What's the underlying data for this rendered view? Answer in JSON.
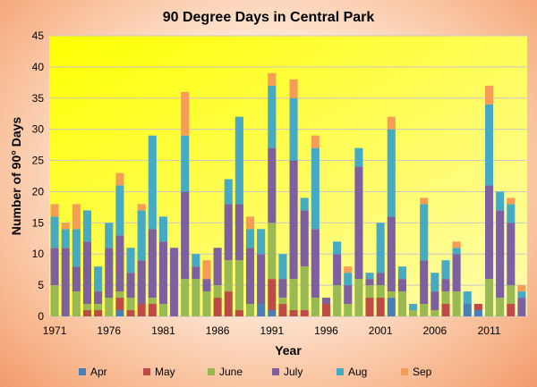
{
  "chart_data": {
    "type": "bar",
    "stacked": true,
    "title": "90 Degree Days in Central Park",
    "xlabel": "Year",
    "ylabel": "Number of 90° Days",
    "ylim": [
      0,
      45
    ],
    "yticks": [
      "0",
      "5",
      "10",
      "15",
      "20",
      "25",
      "30",
      "35",
      "40",
      "45"
    ],
    "xtick_labels": [
      {
        "year": 1971,
        "label": "1971"
      },
      {
        "year": 1976,
        "label": "1976"
      },
      {
        "year": 1981,
        "label": "1981"
      },
      {
        "year": 1986,
        "label": "1986"
      },
      {
        "year": 1991,
        "label": "1991"
      },
      {
        "year": 1996,
        "label": "1996"
      },
      {
        "year": 2001,
        "label": "2001"
      },
      {
        "year": 2006,
        "label": "2006"
      },
      {
        "year": 2011,
        "label": "2011"
      }
    ],
    "grid": true,
    "legend_position": "bottom",
    "colors": {
      "Apr": "#4a7ebb",
      "May": "#be4b48",
      "June": "#98b954",
      "July": "#7d60a0",
      "Aug": "#46aac5",
      "Sep": "#f59d56"
    },
    "plot_background": [
      "#ffff00",
      "#fffbb0"
    ],
    "categories": [
      1971,
      1972,
      1973,
      1974,
      1975,
      1976,
      1977,
      1978,
      1979,
      1980,
      1981,
      1982,
      1983,
      1984,
      1985,
      1986,
      1987,
      1988,
      1989,
      1990,
      1991,
      1992,
      1993,
      1994,
      1995,
      1996,
      1997,
      1998,
      1999,
      2000,
      2001,
      2002,
      2003,
      2004,
      2005,
      2006,
      2007,
      2008,
      2009,
      2010,
      2011,
      2012,
      2013,
      2014
    ],
    "series": [
      {
        "name": "Apr",
        "values": [
          0,
          0,
          0,
          0,
          0,
          0,
          1,
          0,
          0,
          0,
          0,
          0,
          0,
          0,
          0,
          0,
          0,
          0,
          0,
          2,
          1,
          0,
          0,
          0,
          0,
          0,
          0,
          0,
          0,
          0,
          0,
          3,
          0,
          0,
          0,
          0,
          0,
          0,
          2,
          1,
          0,
          0,
          0,
          0
        ]
      },
      {
        "name": "May",
        "values": [
          0,
          0,
          0,
          1,
          1,
          0,
          2,
          1,
          2,
          2,
          0,
          0,
          0,
          0,
          0,
          3,
          4,
          1,
          0,
          0,
          5,
          2,
          1,
          1,
          0,
          2,
          0,
          0,
          0,
          3,
          3,
          0,
          0,
          0,
          0,
          0,
          2,
          0,
          0,
          1,
          0,
          0,
          2,
          0
        ]
      },
      {
        "name": "June",
        "values": [
          5,
          0,
          4,
          1,
          1,
          3,
          1,
          2,
          0,
          1,
          2,
          0,
          6,
          6,
          4,
          2,
          5,
          8,
          2,
          0,
          9,
          1,
          5,
          7,
          3,
          0,
          5,
          2,
          6,
          2,
          2,
          1,
          4,
          1,
          2,
          1,
          2,
          4,
          0,
          0,
          6,
          3,
          3,
          0
        ]
      },
      {
        "name": "July",
        "values": [
          6,
          11,
          4,
          10,
          2,
          8,
          9,
          4,
          7,
          11,
          10,
          11,
          14,
          2,
          2,
          6,
          9,
          9,
          9,
          8,
          12,
          3,
          19,
          9,
          11,
          1,
          5,
          3,
          18,
          1,
          2,
          12,
          2,
          0,
          7,
          3,
          2,
          6,
          0,
          0,
          15,
          14,
          10,
          3
        ]
      },
      {
        "name": "Aug",
        "values": [
          5,
          3,
          6,
          5,
          4,
          4,
          8,
          4,
          8,
          15,
          4,
          0,
          9,
          2,
          0,
          0,
          4,
          14,
          3,
          4,
          10,
          4,
          10,
          2,
          13,
          0,
          2,
          2,
          3,
          1,
          8,
          14,
          2,
          1,
          9,
          3,
          3,
          1,
          2,
          0,
          13,
          3,
          3,
          1
        ]
      },
      {
        "name": "Sep",
        "values": [
          2,
          1,
          4,
          0,
          0,
          0,
          2,
          0,
          1,
          0,
          0,
          0,
          7,
          0,
          3,
          0,
          0,
          0,
          2,
          0,
          2,
          0,
          3,
          0,
          2,
          0,
          0,
          1,
          0,
          0,
          0,
          2,
          0,
          0,
          1,
          0,
          0,
          1,
          0,
          0,
          3,
          0,
          1,
          1
        ]
      }
    ]
  }
}
